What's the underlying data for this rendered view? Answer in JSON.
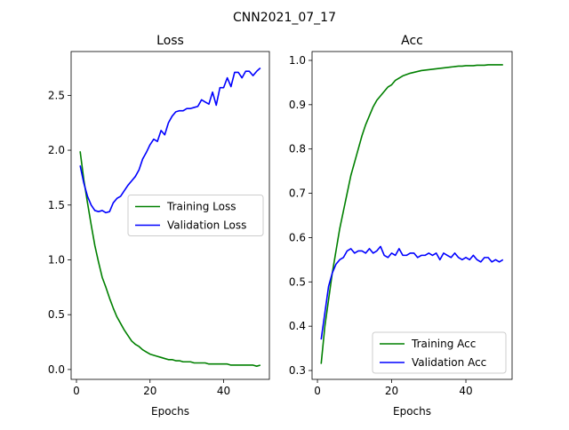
{
  "figure_title": "CNN2021_07_17",
  "chart_data": [
    {
      "type": "line",
      "title": "Loss",
      "xlabel": "Epochs",
      "ylabel": "",
      "xlim": [
        -1.45,
        52.45
      ],
      "ylim": [
        -0.09,
        2.9
      ],
      "xticks": [
        0,
        20,
        40
      ],
      "yticks": [
        0.0,
        0.5,
        1.0,
        1.5,
        2.0,
        2.5
      ],
      "ytick_labels": [
        "0.0",
        "0.5",
        "1.0",
        "1.5",
        "2.0",
        "2.5"
      ],
      "legend_position": "center-right",
      "x": [
        1,
        2,
        3,
        4,
        5,
        6,
        7,
        8,
        9,
        10,
        11,
        12,
        13,
        14,
        15,
        16,
        17,
        18,
        19,
        20,
        21,
        22,
        23,
        24,
        25,
        26,
        27,
        28,
        29,
        30,
        31,
        32,
        33,
        34,
        35,
        36,
        37,
        38,
        39,
        40,
        41,
        42,
        43,
        44,
        45,
        46,
        47,
        48,
        49,
        50
      ],
      "series": [
        {
          "name": "Training Loss",
          "color": "#008000",
          "values": [
            1.99,
            1.73,
            1.52,
            1.32,
            1.13,
            0.98,
            0.84,
            0.75,
            0.65,
            0.56,
            0.48,
            0.42,
            0.36,
            0.31,
            0.26,
            0.23,
            0.21,
            0.18,
            0.16,
            0.14,
            0.13,
            0.12,
            0.11,
            0.1,
            0.09,
            0.09,
            0.08,
            0.08,
            0.07,
            0.07,
            0.07,
            0.06,
            0.06,
            0.06,
            0.06,
            0.05,
            0.05,
            0.05,
            0.05,
            0.05,
            0.05,
            0.04,
            0.04,
            0.04,
            0.04,
            0.04,
            0.04,
            0.04,
            0.03,
            0.04
          ]
        },
        {
          "name": "Validation Loss",
          "color": "#0000ff",
          "values": [
            1.86,
            1.7,
            1.58,
            1.5,
            1.45,
            1.44,
            1.45,
            1.43,
            1.44,
            1.52,
            1.56,
            1.58,
            1.63,
            1.68,
            1.72,
            1.76,
            1.82,
            1.92,
            1.98,
            2.05,
            2.1,
            2.08,
            2.18,
            2.14,
            2.25,
            2.31,
            2.35,
            2.36,
            2.36,
            2.38,
            2.38,
            2.39,
            2.4,
            2.46,
            2.44,
            2.42,
            2.53,
            2.41,
            2.57,
            2.57,
            2.66,
            2.58,
            2.71,
            2.71,
            2.66,
            2.72,
            2.72,
            2.68,
            2.72,
            2.75
          ]
        }
      ]
    },
    {
      "type": "line",
      "title": "Acc",
      "xlabel": "Epochs",
      "ylabel": "",
      "xlim": [
        -1.45,
        52.45
      ],
      "ylim": [
        0.28,
        1.02
      ],
      "xticks": [
        0,
        20,
        40
      ],
      "yticks": [
        0.3,
        0.4,
        0.5,
        0.6,
        0.7,
        0.8,
        0.9,
        1.0
      ],
      "ytick_labels": [
        "0.3",
        "0.4",
        "0.5",
        "0.6",
        "0.7",
        "0.8",
        "0.9",
        "1.0"
      ],
      "legend_position": "lower-right",
      "x": [
        1,
        2,
        3,
        4,
        5,
        6,
        7,
        8,
        9,
        10,
        11,
        12,
        13,
        14,
        15,
        16,
        17,
        18,
        19,
        20,
        21,
        22,
        23,
        24,
        25,
        26,
        27,
        28,
        29,
        30,
        31,
        32,
        33,
        34,
        35,
        36,
        37,
        38,
        39,
        40,
        41,
        42,
        43,
        44,
        45,
        46,
        47,
        48,
        49,
        50
      ],
      "series": [
        {
          "name": "Training Acc",
          "color": "#008000",
          "values": [
            0.315,
            0.4,
            0.46,
            0.52,
            0.57,
            0.62,
            0.66,
            0.7,
            0.74,
            0.77,
            0.8,
            0.83,
            0.855,
            0.875,
            0.895,
            0.91,
            0.92,
            0.93,
            0.94,
            0.945,
            0.955,
            0.96,
            0.965,
            0.968,
            0.971,
            0.973,
            0.975,
            0.977,
            0.978,
            0.979,
            0.98,
            0.981,
            0.982,
            0.983,
            0.984,
            0.985,
            0.986,
            0.987,
            0.987,
            0.988,
            0.988,
            0.988,
            0.989,
            0.989,
            0.989,
            0.99,
            0.99,
            0.99,
            0.99,
            0.99
          ]
        },
        {
          "name": "Validation Acc",
          "color": "#0000ff",
          "values": [
            0.37,
            0.43,
            0.49,
            0.52,
            0.54,
            0.55,
            0.555,
            0.57,
            0.575,
            0.565,
            0.57,
            0.57,
            0.565,
            0.575,
            0.565,
            0.57,
            0.58,
            0.56,
            0.555,
            0.565,
            0.56,
            0.575,
            0.56,
            0.56,
            0.565,
            0.565,
            0.555,
            0.56,
            0.56,
            0.565,
            0.56,
            0.565,
            0.55,
            0.565,
            0.56,
            0.555,
            0.565,
            0.555,
            0.55,
            0.555,
            0.55,
            0.56,
            0.55,
            0.545,
            0.555,
            0.555,
            0.545,
            0.55,
            0.545,
            0.55
          ]
        }
      ]
    }
  ]
}
